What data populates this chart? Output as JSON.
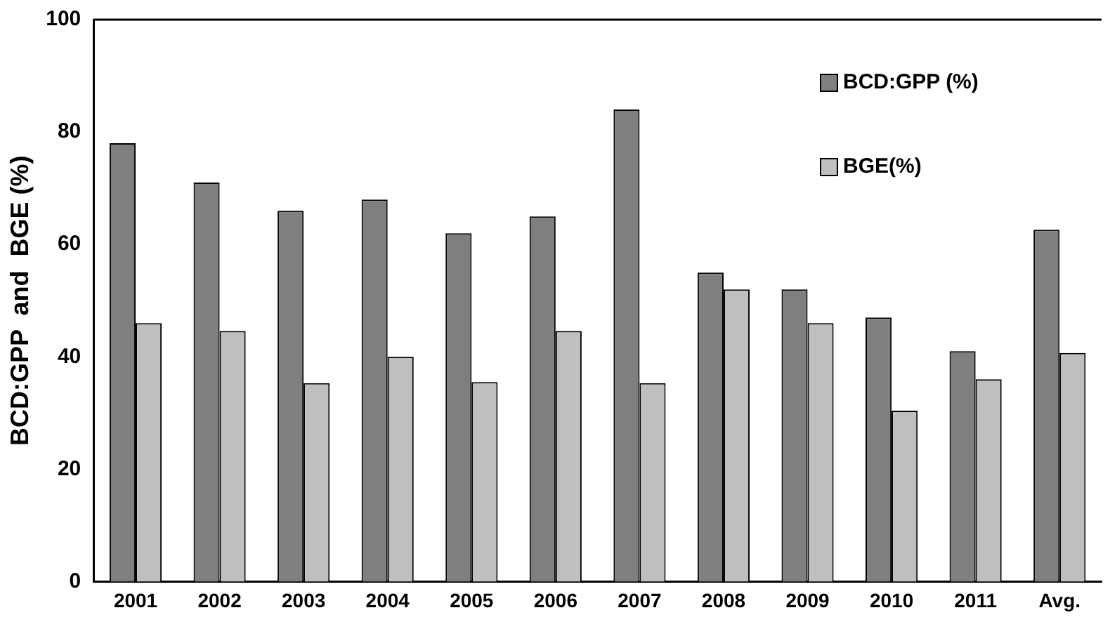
{
  "chart_data": {
    "type": "bar",
    "ylabel": "BCD:GPP  and  BGE (%)",
    "categories": [
      "2001",
      "2002",
      "2003",
      "2004",
      "2005",
      "2006",
      "2007",
      "2008",
      "2009",
      "2010",
      "2011",
      "Avg."
    ],
    "series": [
      {
        "name": "BCD:GPP (%)",
        "color": "#7f7f7f",
        "values": [
          78,
          71,
          66,
          68,
          62,
          65,
          84,
          55,
          52,
          47,
          41,
          62.6
        ]
      },
      {
        "name": "BGE(%)",
        "color": "#bfbfbf",
        "values": [
          46,
          44.6,
          35.3,
          40,
          35.5,
          44.6,
          35.3,
          52,
          46,
          30.4,
          36,
          40.7
        ]
      }
    ],
    "ylim": [
      0,
      100
    ],
    "yticks": [
      0,
      20,
      40,
      60,
      80,
      100
    ],
    "grid": false,
    "legend": "top right"
  }
}
